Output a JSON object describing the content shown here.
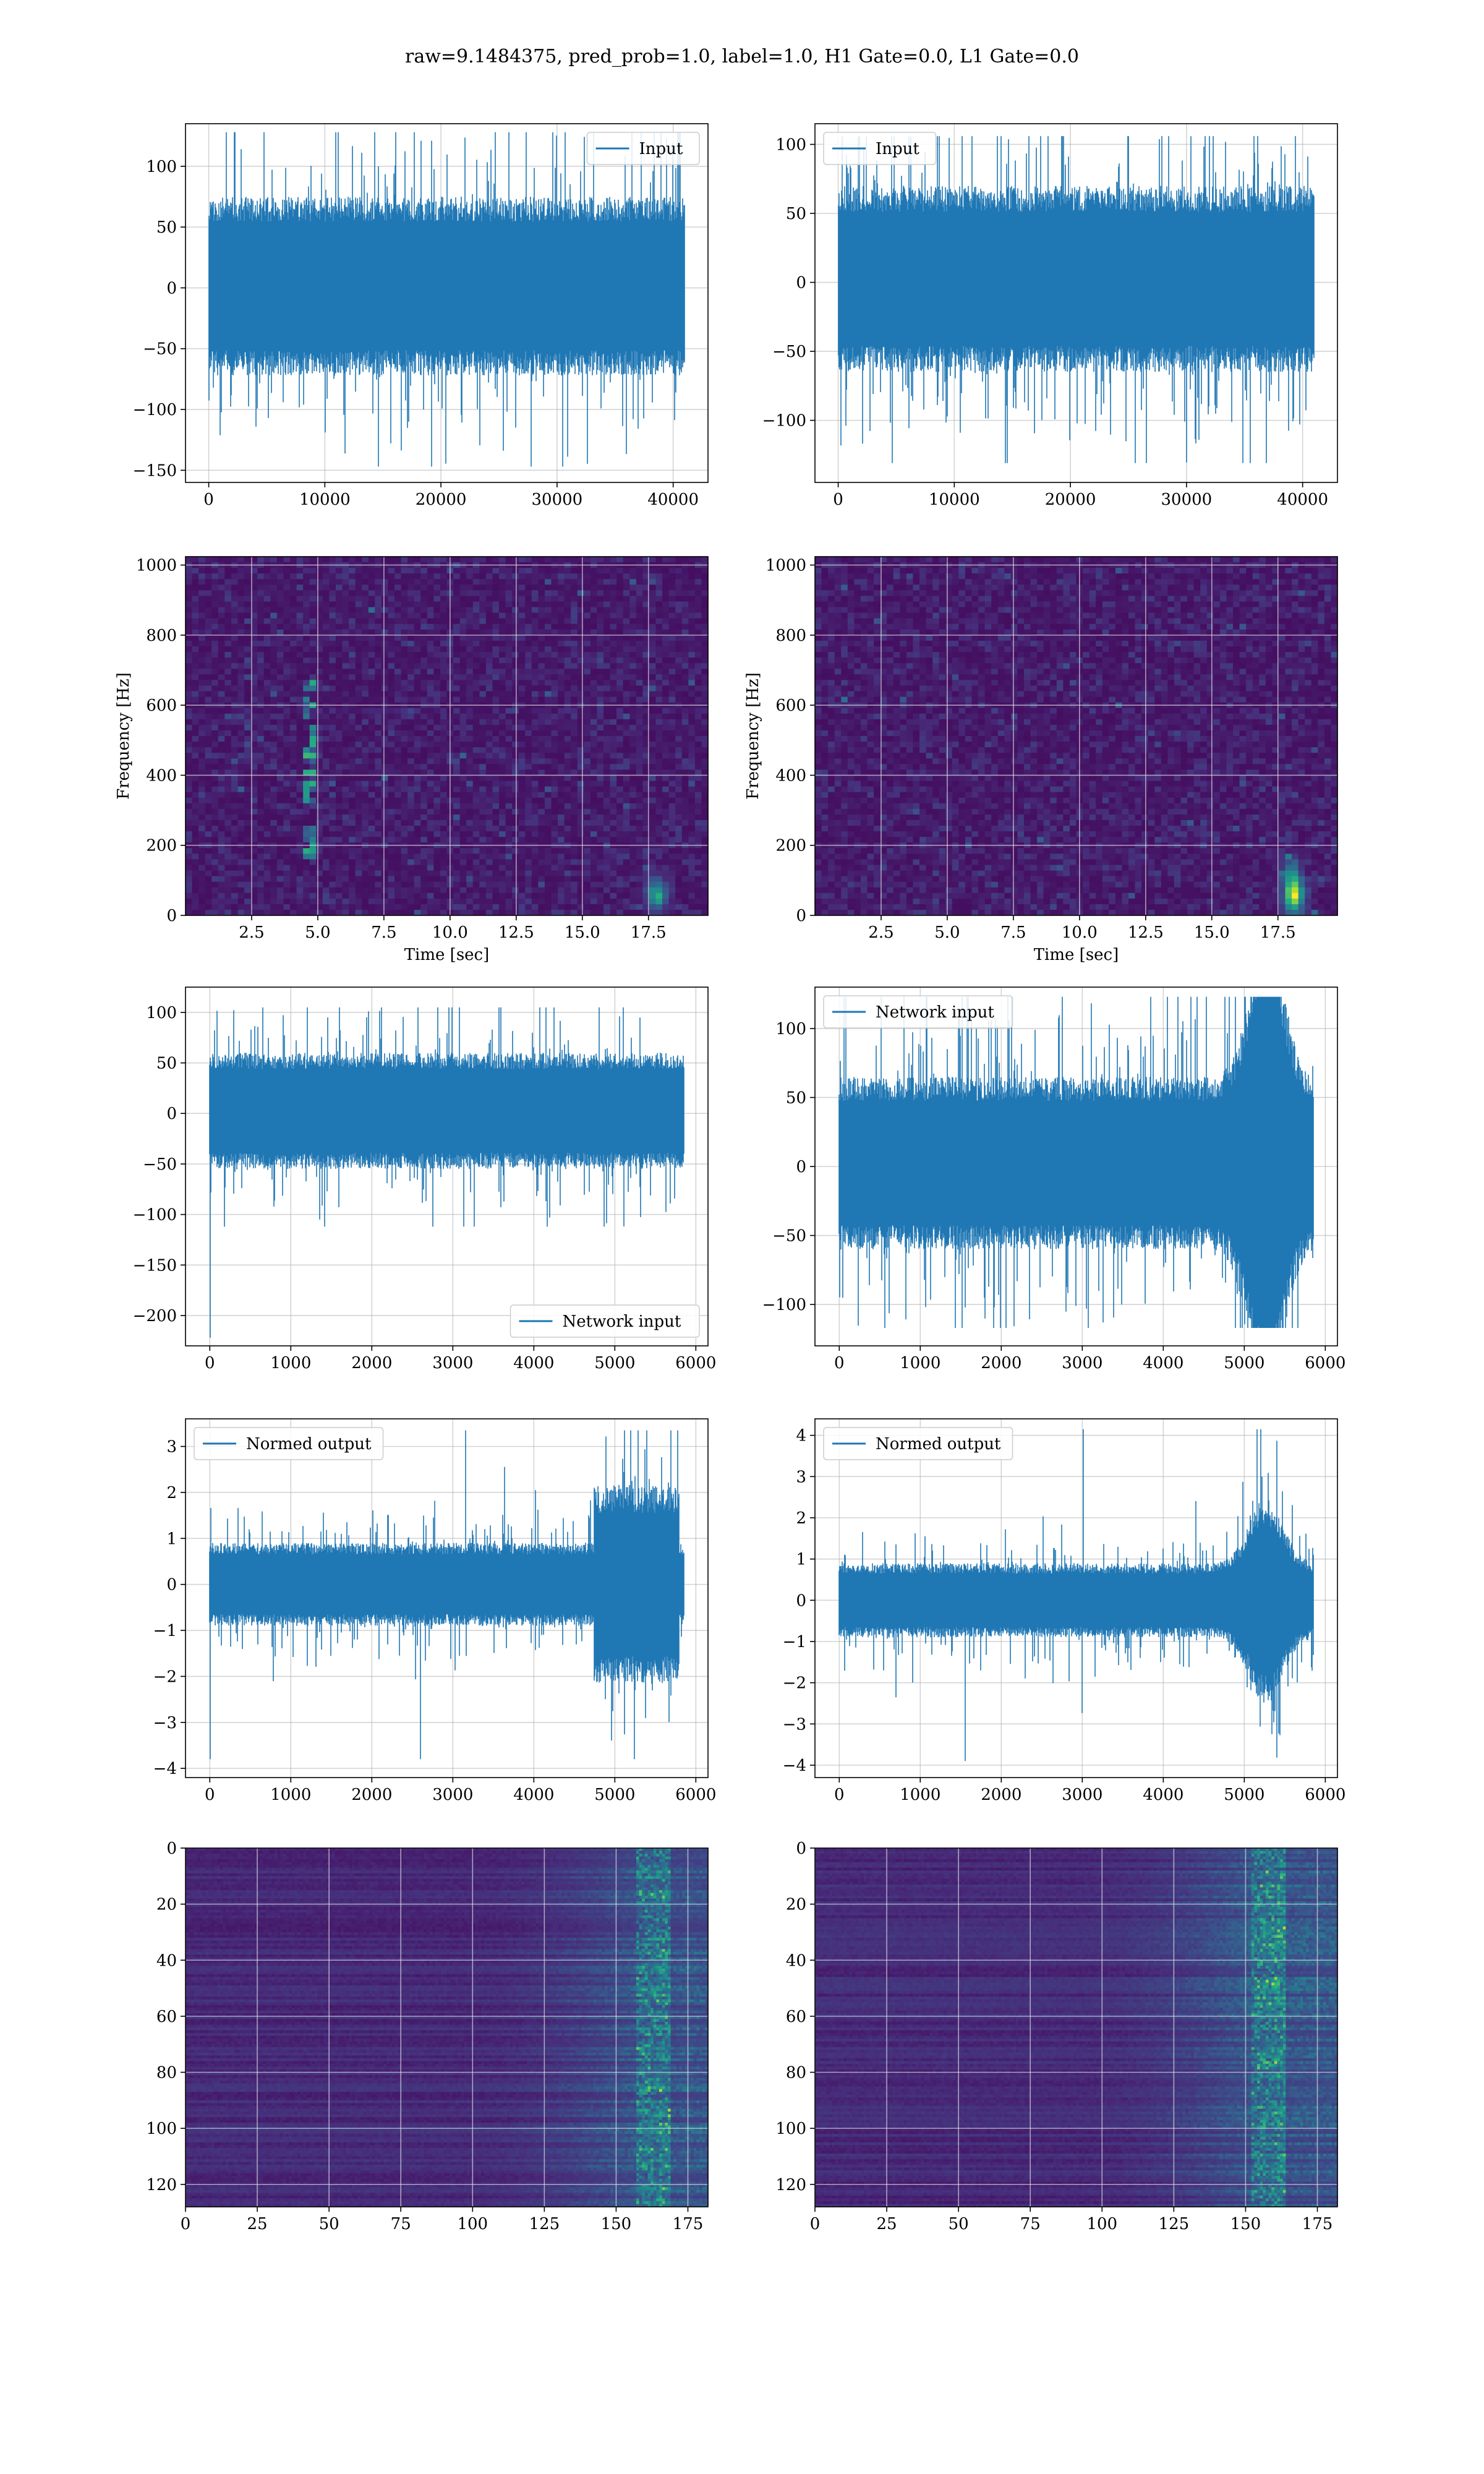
{
  "figure": {
    "suptitle": "raw=9.1484375, pred_prob=1.0, label=1.0, H1 Gate=0.0, L1 Gate=0.0",
    "colors": {
      "line": "#1f77b4",
      "grid": "#b0b0b0",
      "axes_edge": "#000000",
      "heat_low": "#440154",
      "heat_high": "#fde725"
    }
  },
  "chart_data": [
    {
      "id": "input-h1",
      "type": "line",
      "row": 0,
      "col": 0,
      "title": "",
      "xlabel": "",
      "ylabel": "",
      "xlim": [
        -2000,
        43000
      ],
      "ylim": [
        -160,
        135
      ],
      "xticks": [
        0,
        10000,
        20000,
        30000,
        40000
      ],
      "yticks": [
        -150,
        -100,
        -50,
        0,
        50,
        100
      ],
      "legend": {
        "labels": [
          "Input"
        ],
        "loc": "upper right"
      },
      "grid": true,
      "series": [
        {
          "name": "Input",
          "n": 40960,
          "x_range": [
            0,
            40960
          ],
          "band": [
            -72,
            75
          ],
          "peak_max": 128,
          "peak_min": -147,
          "seed": 11,
          "envelope": "flat"
        }
      ]
    },
    {
      "id": "input-l1",
      "type": "line",
      "row": 0,
      "col": 1,
      "title": "",
      "xlabel": "",
      "ylabel": "",
      "xlim": [
        -2000,
        43000
      ],
      "ylim": [
        -145,
        115
      ],
      "xticks": [
        0,
        10000,
        20000,
        30000,
        40000
      ],
      "yticks": [
        -100,
        -50,
        0,
        50,
        100
      ],
      "legend": {
        "labels": [
          "Input"
        ],
        "loc": "upper left"
      },
      "grid": true,
      "series": [
        {
          "name": "Input",
          "n": 40960,
          "x_range": [
            0,
            40960
          ],
          "band": [
            -65,
            70
          ],
          "peak_max": 106,
          "peak_min": -131,
          "seed": 23,
          "envelope": "flat"
        }
      ]
    },
    {
      "id": "spec-h1",
      "type": "heatmap",
      "row": 1,
      "col": 0,
      "title": "",
      "xlabel": "Time [sec]",
      "ylabel": "Frequency [Hz]",
      "xlim": [
        0,
        19.75
      ],
      "ylim": [
        0,
        1024
      ],
      "xticks": [
        2.5,
        5.0,
        7.5,
        10.0,
        12.5,
        15.0,
        17.5
      ],
      "xtick_labels": [
        "2.5",
        "5.0",
        "7.5",
        "10.0",
        "12.5",
        "15.0",
        "17.5"
      ],
      "yticks": [
        0,
        200,
        400,
        600,
        800,
        1000
      ],
      "grid": true,
      "colormap": "viridis",
      "cells": {
        "nx": 80,
        "ny": 64
      },
      "features": [
        {
          "kind": "track",
          "t_low": 4.5,
          "t_high": 4.7,
          "f_low": 150,
          "f_high": 680,
          "strength": 0.6
        },
        {
          "kind": "blob",
          "t": 17.8,
          "f": 60,
          "strength": 0.5
        }
      ],
      "seed": 37
    },
    {
      "id": "spec-l1",
      "type": "heatmap",
      "row": 1,
      "col": 1,
      "title": "",
      "xlabel": "Time [sec]",
      "ylabel": "Frequency [Hz]",
      "xlim": [
        0,
        19.75
      ],
      "ylim": [
        0,
        1024
      ],
      "xticks": [
        2.5,
        5.0,
        7.5,
        10.0,
        12.5,
        15.0,
        17.5
      ],
      "xtick_labels": [
        "2.5",
        "5.0",
        "7.5",
        "10.0",
        "12.5",
        "15.0",
        "17.5"
      ],
      "yticks": [
        0,
        200,
        400,
        600,
        800,
        1000
      ],
      "grid": true,
      "colormap": "viridis",
      "cells": {
        "nx": 80,
        "ny": 64
      },
      "features": [
        {
          "kind": "blob",
          "t": 18.1,
          "f": 55,
          "strength": 0.85
        },
        {
          "kind": "blob",
          "t": 18.0,
          "f": 120,
          "strength": 0.35
        }
      ],
      "seed": 41
    },
    {
      "id": "network-input-h1",
      "type": "line",
      "row": 2,
      "col": 0,
      "title": "",
      "xlabel": "",
      "ylabel": "",
      "xlim": [
        -300,
        6150
      ],
      "ylim": [
        -230,
        125
      ],
      "xticks": [
        0,
        1000,
        2000,
        3000,
        4000,
        5000,
        6000
      ],
      "yticks": [
        -200,
        -150,
        -100,
        -50,
        0,
        50,
        100
      ],
      "legend": {
        "labels": [
          "Network input"
        ],
        "loc": "lower right"
      },
      "grid": true,
      "series": [
        {
          "name": "Network input",
          "n": 5850,
          "x_range": [
            0,
            5850
          ],
          "band": [
            -55,
            60
          ],
          "peak_max": 105,
          "peak_min": -112,
          "start_spike": -222,
          "seed": 53,
          "envelope": "flat"
        }
      ]
    },
    {
      "id": "network-input-l1",
      "type": "line",
      "row": 2,
      "col": 1,
      "title": "",
      "xlabel": "",
      "ylabel": "",
      "xlim": [
        -300,
        6150
      ],
      "ylim": [
        -130,
        130
      ],
      "xticks": [
        0,
        1000,
        2000,
        3000,
        4000,
        5000,
        6000
      ],
      "yticks": [
        -100,
        -50,
        0,
        50,
        100
      ],
      "legend": {
        "labels": [
          "Network input"
        ],
        "loc": "upper left"
      },
      "grid": true,
      "series": [
        {
          "name": "Network input",
          "n": 5850,
          "x_range": [
            0,
            5850
          ],
          "band": [
            -60,
            65
          ],
          "peak_max": 123,
          "peak_min": -117,
          "seed": 67,
          "envelope": "bump"
        }
      ]
    },
    {
      "id": "normed-output-h1",
      "type": "line",
      "row": 3,
      "col": 0,
      "title": "",
      "xlabel": "",
      "ylabel": "",
      "xlim": [
        -300,
        6150
      ],
      "ylim": [
        -4.2,
        3.6
      ],
      "xticks": [
        0,
        1000,
        2000,
        3000,
        4000,
        5000,
        6000
      ],
      "yticks": [
        -4,
        -3,
        -2,
        -1,
        0,
        1,
        2,
        3
      ],
      "legend": {
        "labels": [
          "Normed output"
        ],
        "loc": "upper left"
      },
      "grid": true,
      "series": [
        {
          "name": "Normed output",
          "n": 5850,
          "x_range": [
            0,
            5850
          ],
          "band": [
            -0.9,
            0.9
          ],
          "peak_max": 3.35,
          "peak_min": -3.8,
          "start_spike": -3.8,
          "seed": 71,
          "envelope": "late-burst"
        }
      ]
    },
    {
      "id": "normed-output-l1",
      "type": "line",
      "row": 3,
      "col": 1,
      "title": "",
      "xlabel": "",
      "ylabel": "",
      "xlim": [
        -300,
        6150
      ],
      "ylim": [
        -4.3,
        4.4
      ],
      "xticks": [
        0,
        1000,
        2000,
        3000,
        4000,
        5000,
        6000
      ],
      "yticks": [
        -4,
        -3,
        -2,
        -1,
        0,
        1,
        2,
        3,
        4
      ],
      "legend": {
        "labels": [
          "Normed output"
        ],
        "loc": "upper left"
      },
      "grid": true,
      "series": [
        {
          "name": "Normed output",
          "n": 5850,
          "x_range": [
            0,
            5850
          ],
          "band": [
            -0.9,
            0.9
          ],
          "peak_max": 4.15,
          "peak_min": -3.9,
          "seed": 83,
          "envelope": "bump"
        }
      ]
    },
    {
      "id": "features-h1",
      "type": "heatmap",
      "row": 4,
      "col": 0,
      "title": "",
      "xlabel": "",
      "ylabel": "",
      "xlim": [
        0,
        182
      ],
      "ylim": [
        128,
        0
      ],
      "xticks": [
        0,
        25,
        50,
        75,
        100,
        125,
        150,
        175
      ],
      "yticks": [
        0,
        20,
        40,
        60,
        80,
        100,
        120
      ],
      "grid": true,
      "colormap": "viridis",
      "cells": {
        "nx": 182,
        "ny": 128
      },
      "features": [
        {
          "kind": "right-activation",
          "x_start": 95,
          "x_peak": 163,
          "strength": 1.0
        }
      ],
      "seed": 97
    },
    {
      "id": "features-l1",
      "type": "heatmap",
      "row": 4,
      "col": 1,
      "title": "",
      "xlabel": "",
      "ylabel": "",
      "xlim": [
        0,
        182
      ],
      "ylim": [
        128,
        0
      ],
      "xticks": [
        0,
        25,
        50,
        75,
        100,
        125,
        150,
        175
      ],
      "yticks": [
        0,
        20,
        40,
        60,
        80,
        100,
        120
      ],
      "grid": true,
      "colormap": "viridis",
      "cells": {
        "nx": 182,
        "ny": 128
      },
      "features": [
        {
          "kind": "right-activation",
          "x_start": 90,
          "x_peak": 158,
          "strength": 1.0
        }
      ],
      "seed": 103
    }
  ]
}
